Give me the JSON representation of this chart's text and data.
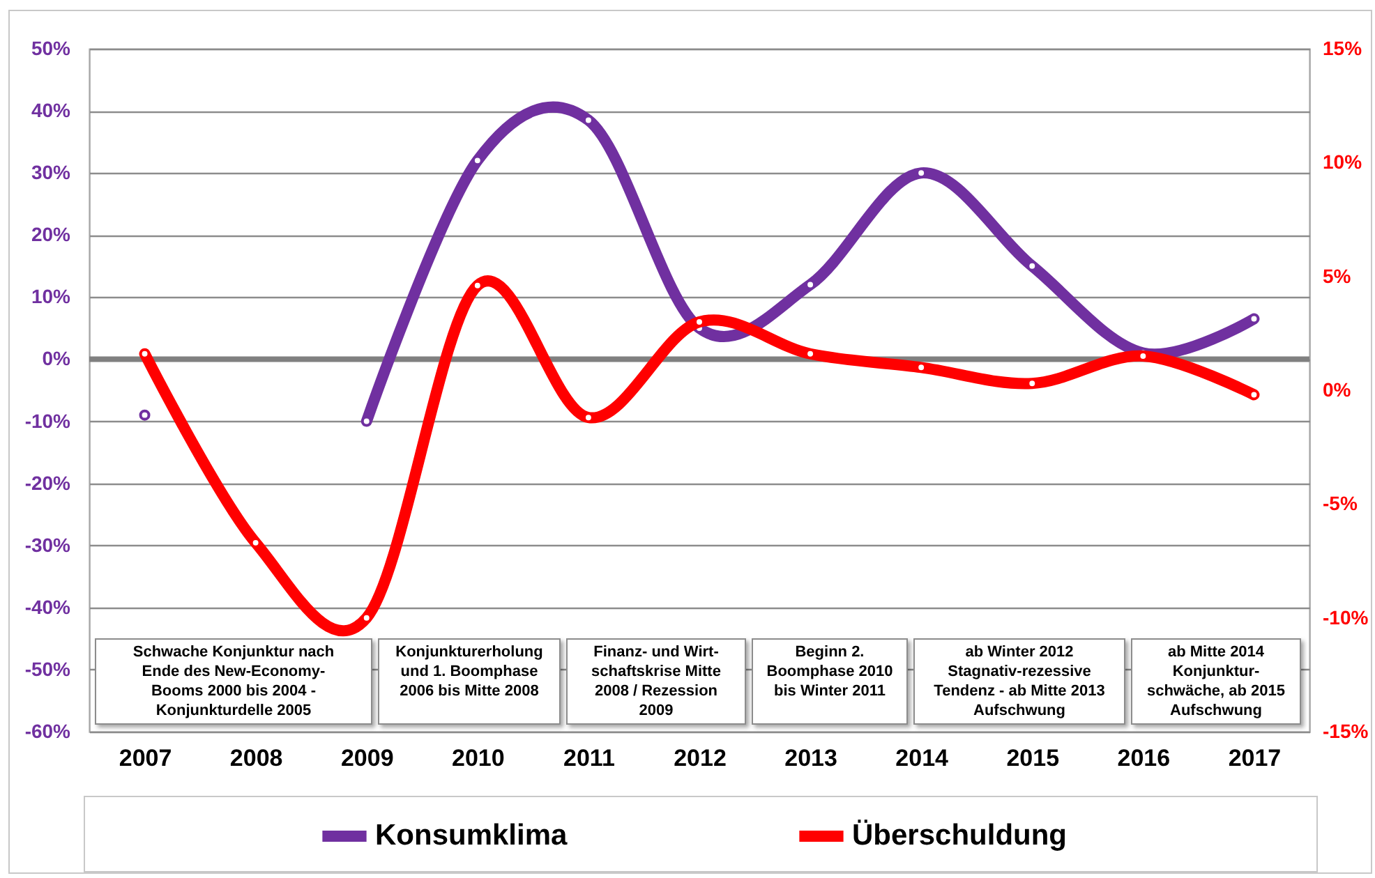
{
  "chart_data": {
    "type": "line",
    "categories": [
      "2007",
      "2008",
      "2009",
      "2010",
      "2011",
      "2012",
      "2013",
      "2014",
      "2015",
      "2016",
      "2017"
    ],
    "series": [
      {
        "name": "Konsumklima",
        "color": "#7030a0",
        "values": [
          -9,
          null,
          -10,
          32,
          38.5,
          5,
          12,
          30,
          15,
          1,
          6.5
        ]
      },
      {
        "name": "Überschuldung",
        "color": "#ff0000",
        "axis": "y2",
        "values": [
          1.6,
          -6.7,
          -10,
          4.6,
          -1.2,
          3,
          1.6,
          1,
          0.3,
          1.5,
          -0.2
        ]
      }
    ],
    "ylim": [
      -60,
      50
    ],
    "yticks": [
      {
        "value": -60,
        "label": "-60%"
      },
      {
        "value": -50,
        "label": "-50%"
      },
      {
        "value": -40,
        "label": "-40%"
      },
      {
        "value": -30,
        "label": "-30%"
      },
      {
        "value": -20,
        "label": "-20%"
      },
      {
        "value": -10,
        "label": "-10%"
      },
      {
        "value": 0,
        "label": "0%"
      },
      {
        "value": 10,
        "label": "10%"
      },
      {
        "value": 20,
        "label": "20%"
      },
      {
        "value": 30,
        "label": "30%"
      },
      {
        "value": 40,
        "label": "40%"
      },
      {
        "value": 50,
        "label": "50%"
      }
    ],
    "y2lim": [
      -15,
      15
    ],
    "y2ticks": [
      {
        "value": -15,
        "label": "-15%"
      },
      {
        "value": -10,
        "label": "-10%"
      },
      {
        "value": -5,
        "label": "-5%"
      },
      {
        "value": 0,
        "label": "0%"
      },
      {
        "value": 5,
        "label": "5%"
      },
      {
        "value": 10,
        "label": "10%"
      },
      {
        "value": 15,
        "label": "15%"
      }
    ],
    "grid": "y",
    "legend": "bottom",
    "marker": "circle",
    "ref_lines": [
      {
        "axis": "y",
        "value": 0,
        "color": "#808080"
      }
    ],
    "annotations": [
      "Schwache Konjunktur nach\nEnde des New-Economy-\nBooms 2000 bis 2004 -\nKonjunkturdelle 2005",
      "Konjunkturerholung\nund 1. Boomphase\n2006 bis Mitte 2008",
      "Finanz- und Wirt-\nschaftskrise  Mitte\n2008 / Rezession\n2009",
      "Beginn 2.\nBoomphase 2010\nbis Winter 2011",
      "ab Winter 2012\nStagnativ-rezessive\nTendenz - ab Mitte 2013\nAufschwung",
      "ab Mitte 2014\nKonjunktur-\nschwäche, ab 2015\nAufschwung"
    ]
  }
}
